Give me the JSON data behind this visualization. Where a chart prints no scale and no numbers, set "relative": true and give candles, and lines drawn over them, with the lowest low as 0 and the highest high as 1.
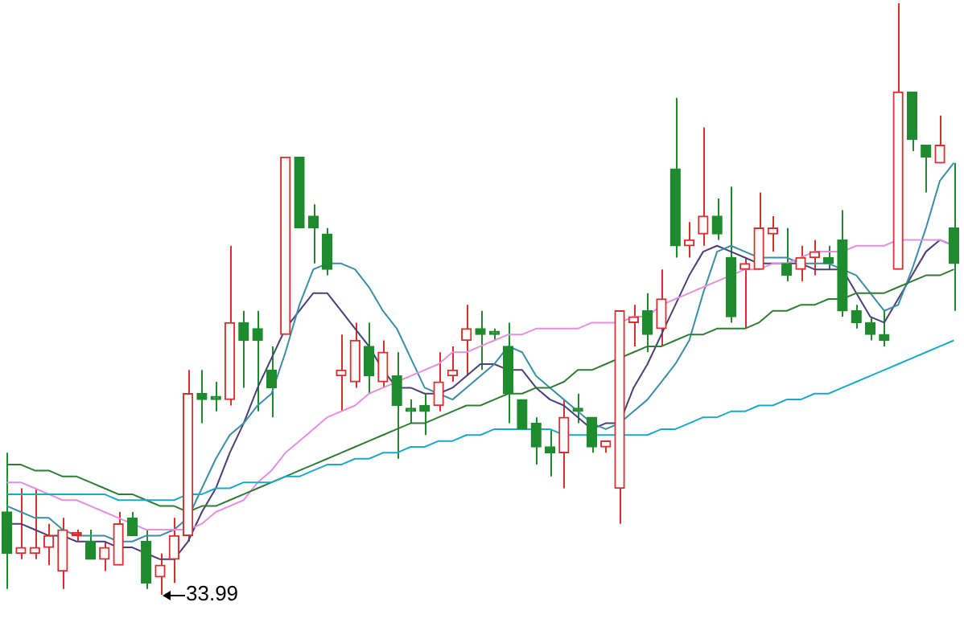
{
  "chart_data": {
    "type": "candlestick",
    "relative": true,
    "legend": false,
    "marker": "none",
    "line_style": "solid",
    "categories": [
      null,
      null,
      null,
      null,
      null,
      null,
      null,
      null,
      null,
      null,
      null,
      null,
      null,
      null,
      null,
      null,
      null,
      null,
      null,
      null,
      null,
      null,
      null,
      null,
      null,
      null,
      null,
      null,
      null,
      null,
      null,
      null,
      null,
      null,
      null,
      null,
      null,
      null,
      null,
      null,
      null,
      null,
      null,
      null,
      null,
      null,
      null,
      null,
      null,
      null,
      null,
      null,
      null,
      null,
      null,
      null,
      null,
      null,
      null,
      null,
      null,
      null,
      null,
      null,
      null,
      null,
      null,
      null,
      null
    ],
    "annotations": [
      "33.99"
    ],
    "series": [
      {
        "type": "line",
        "color": "#1aa9c9",
        "values": [
          0.17,
          0.17,
          0.17,
          0.17,
          0.17,
          0.17,
          0.17,
          0.17,
          0.16,
          0.16,
          0.16,
          0.16,
          0.16,
          0.17,
          0.17,
          0.18,
          0.18,
          0.19,
          0.19,
          0.19,
          0.2,
          0.2,
          0.21,
          0.22,
          0.22,
          0.23,
          0.23,
          0.24,
          0.24,
          0.25,
          0.25,
          0.26,
          0.26,
          0.27,
          0.27,
          0.28,
          0.28,
          0.28,
          0.28,
          0.28,
          0.27,
          0.27,
          0.27,
          0.27,
          0.27,
          0.27,
          0.27,
          0.28,
          0.28,
          0.29,
          0.3,
          0.3,
          0.31,
          0.31,
          0.32,
          0.32,
          0.33,
          0.33,
          0.34,
          0.34,
          0.35,
          0.36,
          0.37,
          0.38,
          0.39,
          0.4,
          0.41,
          0.42,
          0.43
        ]
      },
      {
        "type": "line",
        "color": "#2e7d32",
        "values": [
          0.22,
          0.22,
          0.21,
          0.21,
          0.2,
          0.2,
          0.19,
          0.18,
          0.17,
          0.17,
          0.16,
          0.15,
          0.15,
          0.14,
          0.15,
          0.15,
          0.16,
          0.17,
          0.18,
          0.19,
          0.2,
          0.21,
          0.22,
          0.23,
          0.24,
          0.25,
          0.26,
          0.27,
          0.28,
          0.29,
          0.29,
          0.3,
          0.31,
          0.32,
          0.32,
          0.33,
          0.34,
          0.34,
          0.35,
          0.35,
          0.36,
          0.38,
          0.38,
          0.39,
          0.4,
          0.41,
          0.42,
          0.42,
          0.43,
          0.44,
          0.44,
          0.45,
          0.45,
          0.45,
          0.46,
          0.48,
          0.48,
          0.49,
          0.49,
          0.5,
          0.5,
          0.51,
          0.51,
          0.51,
          0.52,
          0.53,
          0.54,
          0.54,
          0.55
        ]
      },
      {
        "type": "line",
        "color": "#e58fe0",
        "values": [
          0.19,
          0.19,
          0.18,
          0.17,
          0.16,
          0.16,
          0.15,
          0.14,
          0.13,
          0.12,
          0.11,
          0.11,
          0.11,
          0.11,
          0.12,
          0.14,
          0.15,
          0.16,
          0.19,
          0.21,
          0.24,
          0.26,
          0.28,
          0.3,
          0.31,
          0.32,
          0.34,
          0.35,
          0.36,
          0.37,
          0.38,
          0.39,
          0.41,
          0.41,
          0.42,
          0.43,
          0.44,
          0.44,
          0.45,
          0.45,
          0.45,
          0.45,
          0.46,
          0.46,
          0.46,
          0.47,
          0.47,
          0.49,
          0.5,
          0.51,
          0.52,
          0.53,
          0.54,
          0.55,
          0.55,
          0.56,
          0.56,
          0.57,
          0.58,
          0.58,
          0.58,
          0.59,
          0.59,
          0.59,
          0.6,
          0.6,
          0.6,
          0.6,
          0.59
        ]
      },
      {
        "type": "line",
        "color": "#3b8ea5",
        "values": [
          0.15,
          0.14,
          0.13,
          0.13,
          0.11,
          0.1,
          0.1,
          0.1,
          0.09,
          0.09,
          0.1,
          0.1,
          0.11,
          0.13,
          0.18,
          0.23,
          0.27,
          0.29,
          0.32,
          0.34,
          0.41,
          0.49,
          0.55,
          0.56,
          0.56,
          0.55,
          0.52,
          0.48,
          0.45,
          0.4,
          0.35,
          0.34,
          0.33,
          0.35,
          0.37,
          0.39,
          0.42,
          0.41,
          0.37,
          0.35,
          0.33,
          0.31,
          0.29,
          0.28,
          0.29,
          0.31,
          0.33,
          0.36,
          0.39,
          0.43,
          0.51,
          0.58,
          0.59,
          0.58,
          0.57,
          0.57,
          0.57,
          0.56,
          0.56,
          0.56,
          0.55,
          0.54,
          0.51,
          0.48,
          0.49,
          0.55,
          0.62,
          0.7,
          0.73
        ]
      },
      {
        "type": "line",
        "color": "#4b3f7a",
        "values": [
          0.12,
          0.12,
          0.11,
          0.1,
          0.1,
          0.09,
          0.09,
          0.09,
          0.08,
          0.08,
          0.07,
          0.06,
          0.06,
          0.09,
          0.14,
          0.18,
          0.24,
          0.29,
          0.35,
          0.4,
          0.45,
          0.48,
          0.51,
          0.51,
          0.48,
          0.45,
          0.42,
          0.38,
          0.35,
          0.35,
          0.34,
          0.34,
          0.35,
          0.37,
          0.39,
          0.39,
          0.38,
          0.38,
          0.35,
          0.33,
          0.32,
          0.3,
          0.28,
          0.29,
          0.29,
          0.35,
          0.39,
          0.44,
          0.49,
          0.54,
          0.58,
          0.59,
          0.58,
          0.57,
          0.56,
          0.56,
          0.56,
          0.56,
          0.55,
          0.55,
          0.55,
          0.51,
          0.47,
          0.46,
          0.5,
          0.54,
          0.58,
          0.6,
          0.59
        ]
      },
      {
        "type": "candlestick",
        "colors": [
          "#1e8c2e",
          "#d63030",
          "#d63030",
          "#d63030",
          "#d63030",
          "#d63030",
          "#1e8c2e",
          "#d63030",
          "#d63030",
          "#1e8c2e",
          "#1e8c2e",
          "#d63030",
          "#d63030",
          "#d63030",
          "#1e8c2e",
          "#1e8c2e",
          "#d63030",
          "#1e8c2e",
          "#1e8c2e",
          "#1e8c2e",
          "#d63030",
          "#1e8c2e",
          "#1e8c2e",
          "#1e8c2e",
          "#d63030",
          "#d63030",
          "#1e8c2e",
          "#d63030",
          "#1e8c2e",
          "#1e8c2e",
          "#1e8c2e",
          "#d63030",
          "#d63030",
          "#d63030",
          "#1e8c2e",
          "#1e8c2e",
          "#1e8c2e",
          "#1e8c2e",
          "#1e8c2e",
          "#1e8c2e",
          "#d63030",
          "#1e8c2e",
          "#1e8c2e",
          "#d63030",
          "#d63030",
          "#d63030",
          "#1e8c2e",
          "#d63030",
          "#1e8c2e",
          "#d63030",
          "#d63030",
          "#1e8c2e",
          "#1e8c2e",
          "#d63030",
          "#d63030",
          "#d63030",
          "#1e8c2e",
          "#d63030",
          "#d63030",
          "#1e8c2e",
          "#1e8c2e",
          "#1e8c2e",
          "#1e8c2e",
          "#1e8c2e",
          "#d63030",
          "#1e8c2e",
          "#1e8c2e",
          "#d63030",
          "#1e8c2e"
        ],
        "ohlc": [
          [
            0.14,
            0.24,
            0.01,
            0.07
          ],
          [
            0.07,
            0.18,
            0.06,
            0.08
          ],
          [
            0.07,
            0.18,
            0.06,
            0.08
          ],
          [
            0.08,
            0.12,
            0.05,
            0.1
          ],
          [
            0.04,
            0.13,
            0.01,
            0.11
          ],
          [
            0.1,
            0.11,
            0.09,
            0.1
          ],
          [
            0.09,
            0.11,
            0.06,
            0.06
          ],
          [
            0.06,
            0.09,
            0.04,
            0.08
          ],
          [
            0.05,
            0.14,
            0.05,
            0.12
          ],
          [
            0.13,
            0.14,
            0.1,
            0.1
          ],
          [
            0.09,
            0.11,
            0.01,
            0.02
          ],
          [
            0.03,
            0.07,
            0,
            0.05
          ],
          [
            0.06,
            0.13,
            0.02,
            0.1
          ],
          [
            0.1,
            0.38,
            0.09,
            0.34
          ],
          [
            0.34,
            0.38,
            0.29,
            0.33
          ],
          [
            0.33,
            0.36,
            0.31,
            0.33
          ],
          [
            0.33,
            0.59,
            0.32,
            0.46
          ],
          [
            0.46,
            0.48,
            0.35,
            0.43
          ],
          [
            0.45,
            0.48,
            0.31,
            0.43
          ],
          [
            0.38,
            0.42,
            0.3,
            0.35
          ],
          [
            0.44,
            0.74,
            0.44,
            0.74
          ],
          [
            0.74,
            0.74,
            0.62,
            0.62
          ],
          [
            0.64,
            0.66,
            0.56,
            0.62
          ],
          [
            0.61,
            0.62,
            0.54,
            0.55
          ],
          [
            0.37,
            0.44,
            0.31,
            0.38
          ],
          [
            0.36,
            0.46,
            0.35,
            0.43
          ],
          [
            0.42,
            0.46,
            0.34,
            0.37
          ],
          [
            0.36,
            0.43,
            0.35,
            0.41
          ],
          [
            0.37,
            0.41,
            0.23,
            0.32
          ],
          [
            0.31,
            0.33,
            0.29,
            0.31
          ],
          [
            0.32,
            0.34,
            0.27,
            0.31
          ],
          [
            0.32,
            0.41,
            0.31,
            0.36
          ],
          [
            0.37,
            0.42,
            0.36,
            0.38
          ],
          [
            0.43,
            0.49,
            0.37,
            0.45
          ],
          [
            0.45,
            0.48,
            0.38,
            0.44
          ],
          [
            0.44,
            0.45,
            0.43,
            0.44
          ],
          [
            0.42,
            0.46,
            0.29,
            0.34
          ],
          [
            0.33,
            0.33,
            0.28,
            0.28
          ],
          [
            0.29,
            0.3,
            0.22,
            0.25
          ],
          [
            0.25,
            0.28,
            0.2,
            0.24
          ],
          [
            0.24,
            0.33,
            0.18,
            0.3
          ],
          [
            0.31,
            0.34,
            0.29,
            0.31
          ],
          [
            0.3,
            0.3,
            0.24,
            0.25
          ],
          [
            0.25,
            0.26,
            0.24,
            0.26
          ],
          [
            0.18,
            0.48,
            0.12,
            0.48
          ],
          [
            0.46,
            0.49,
            0.42,
            0.47
          ],
          [
            0.48,
            0.51,
            0.41,
            0.44
          ],
          [
            0.45,
            0.55,
            0.42,
            0.5
          ],
          [
            0.72,
            0.84,
            0.57,
            0.59
          ],
          [
            0.59,
            0.63,
            0.57,
            0.6
          ],
          [
            0.61,
            0.79,
            0.59,
            0.64
          ],
          [
            0.64,
            0.67,
            0.6,
            0.61
          ],
          [
            0.57,
            0.69,
            0.46,
            0.47
          ],
          [
            0.55,
            0.57,
            0.45,
            0.56
          ],
          [
            0.55,
            0.68,
            0.55,
            0.62
          ],
          [
            0.61,
            0.64,
            0.58,
            0.62
          ],
          [
            0.56,
            0.62,
            0.53,
            0.54
          ],
          [
            0.55,
            0.59,
            0.53,
            0.57
          ],
          [
            0.57,
            0.6,
            0.54,
            0.58
          ],
          [
            0.57,
            0.59,
            0.55,
            0.56
          ],
          [
            0.6,
            0.65,
            0.47,
            0.48
          ],
          [
            0.48,
            0.49,
            0.45,
            0.46
          ],
          [
            0.46,
            0.47,
            0.43,
            0.44
          ],
          [
            0.44,
            0.48,
            0.42,
            0.43
          ],
          [
            0.55,
            1,
            0.55,
            0.85
          ],
          [
            0.85,
            0.85,
            0.75,
            0.77
          ],
          [
            0.76,
            0.76,
            0.68,
            0.74
          ],
          [
            0.73,
            0.81,
            0.73,
            0.76
          ],
          [
            0.62,
            0.73,
            0.48,
            0.56
          ]
        ]
      }
    ]
  }
}
